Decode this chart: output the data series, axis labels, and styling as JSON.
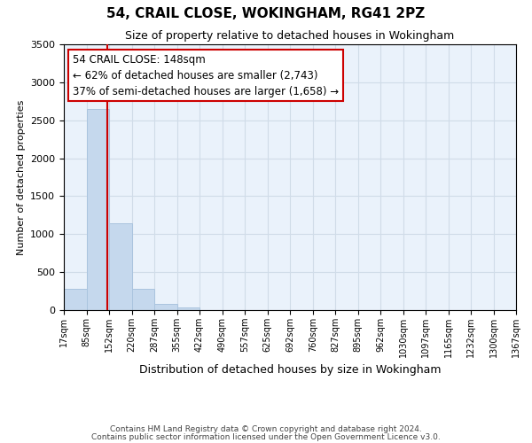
{
  "title": "54, CRAIL CLOSE, WOKINGHAM, RG41 2PZ",
  "subtitle": "Size of property relative to detached houses in Wokingham",
  "xlabel": "Distribution of detached houses by size in Wokingham",
  "ylabel": "Number of detached properties",
  "bar_values": [
    280,
    2650,
    1140,
    280,
    80,
    30,
    0,
    0,
    0,
    0,
    0,
    0,
    0,
    0,
    0,
    0,
    0,
    0,
    0,
    0
  ],
  "bar_edges": [
    17,
    85,
    152,
    220,
    287,
    355,
    422,
    490,
    557,
    625,
    692,
    760,
    827,
    895,
    962,
    1030,
    1097,
    1165,
    1232,
    1300,
    1367
  ],
  "tick_labels": [
    "17sqm",
    "85sqm",
    "152sqm",
    "220sqm",
    "287sqm",
    "355sqm",
    "422sqm",
    "490sqm",
    "557sqm",
    "625sqm",
    "692sqm",
    "760sqm",
    "827sqm",
    "895sqm",
    "962sqm",
    "1030sqm",
    "1097sqm",
    "1165sqm",
    "1232sqm",
    "1300sqm",
    "1367sqm"
  ],
  "bar_color": "#c5d8ed",
  "bar_edgecolor": "#aac4de",
  "vline_x": 148,
  "vline_color": "#cc0000",
  "annotation_title": "54 CRAIL CLOSE: 148sqm",
  "annotation_line1": "← 62% of detached houses are smaller (2,743)",
  "annotation_line2": "37% of semi-detached houses are larger (1,658) →",
  "annotation_box_color": "#ffffff",
  "annotation_box_edgecolor": "#cc0000",
  "ylim": [
    0,
    3500
  ],
  "yticks": [
    0,
    500,
    1000,
    1500,
    2000,
    2500,
    3000,
    3500
  ],
  "grid_color": "#d0dce8",
  "bg_color": "#eaf2fb",
  "footer1": "Contains HM Land Registry data © Crown copyright and database right 2024.",
  "footer2": "Contains public sector information licensed under the Open Government Licence v3.0."
}
